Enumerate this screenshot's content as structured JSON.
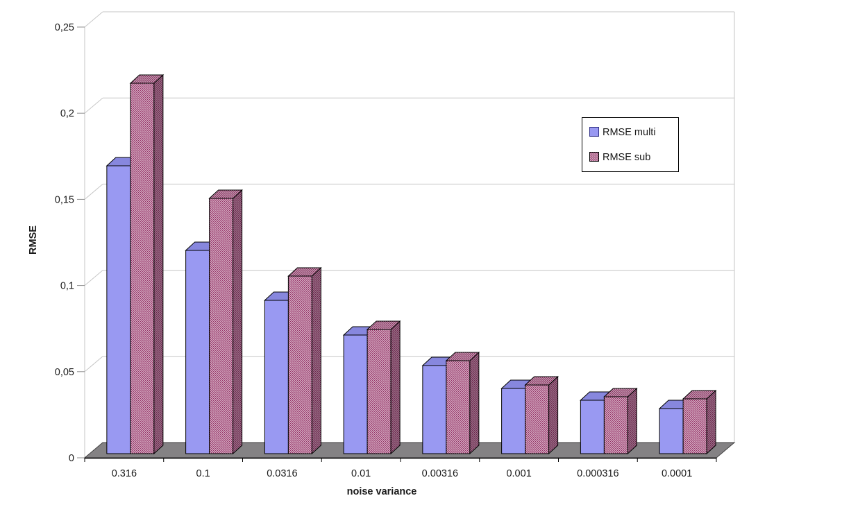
{
  "chart_data": {
    "type": "bar",
    "style": "excel-3d-clustered",
    "title": "",
    "xlabel": "noise variance",
    "ylabel": "RMSE",
    "categories": [
      "0.316",
      "0.1",
      "0.0316",
      "0.01",
      "0.00316",
      "0.001",
      "0.000316",
      "0.0001"
    ],
    "series": [
      {
        "name": "RMSE multi",
        "pattern": "solid",
        "fill": "#9999F2",
        "top_fill": "#8787DE",
        "values": [
          0.167,
          0.118,
          0.089,
          0.069,
          0.051,
          0.038,
          0.031,
          0.026
        ]
      },
      {
        "name": "RMSE sub",
        "pattern": "diagonal-hatch",
        "stripe_color": "#943166",
        "hatch_background": "#FFFFFF",
        "values": [
          0.215,
          0.148,
          0.103,
          0.072,
          0.054,
          0.04,
          0.033,
          0.032
        ]
      }
    ],
    "ylim": [
      0,
      0.25
    ],
    "y_ticks": [
      0,
      0.05,
      0.1,
      0.15,
      0.2,
      0.25
    ],
    "y_tick_labels": [
      "0",
      "0,05",
      "0,1",
      "0,15",
      "0,2",
      "0,25"
    ],
    "grid": true,
    "legend": {
      "position": "upper-right",
      "entries": [
        "RMSE multi",
        "RMSE sub"
      ]
    },
    "colors": {
      "background": "#FFFFFF",
      "gridline": "#C6C6C6",
      "wall_edge": "#C6C6C6",
      "tick": "#8C8C8C",
      "axis": "#000000",
      "floor": "#848284",
      "floor_edge": "#3F3F3F",
      "bar_outline": "#000000",
      "text": "#1A1A1A",
      "legend_border": "#000000",
      "legend_swatch_multi_border": "#333388"
    }
  }
}
